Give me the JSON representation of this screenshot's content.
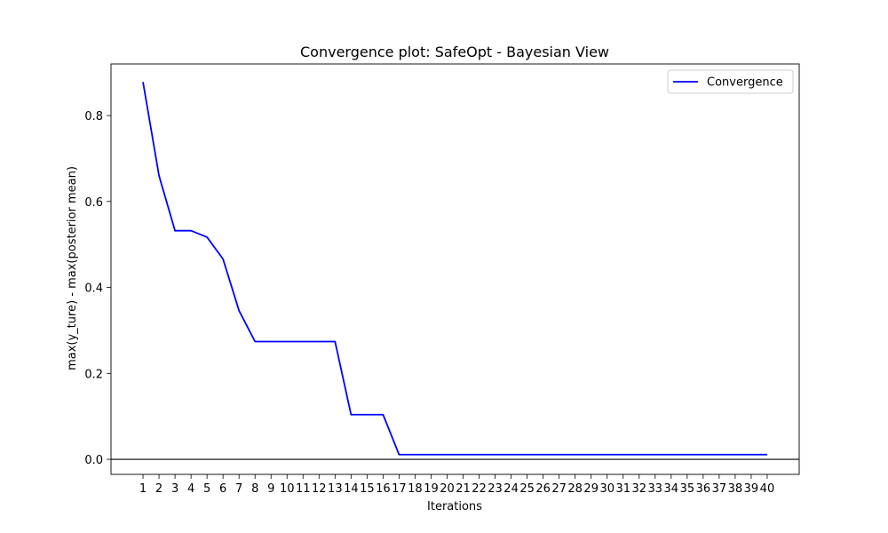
{
  "chart_data": {
    "type": "line",
    "title": "Convergence plot: SafeOpt - Bayesian View",
    "xlabel": "Iterations",
    "ylabel": "max(y_ture) - max(posterior mean)",
    "xlim": [
      -1,
      42
    ],
    "ylim": [
      -0.035,
      0.92
    ],
    "x": [
      1,
      2,
      3,
      4,
      5,
      6,
      7,
      8,
      9,
      10,
      11,
      12,
      13,
      14,
      15,
      16,
      17,
      18,
      19,
      20,
      21,
      22,
      23,
      24,
      25,
      26,
      27,
      28,
      29,
      30,
      31,
      32,
      33,
      34,
      35,
      36,
      37,
      38,
      39,
      40
    ],
    "x_tick_labels": [
      "1",
      "2",
      "3",
      "4",
      "5",
      "6",
      "7",
      "8",
      "9",
      "10",
      "11",
      "12",
      "13",
      "14",
      "15",
      "16",
      "17",
      "18",
      "19",
      "20",
      "21",
      "22",
      "23",
      "24",
      "25",
      "26",
      "27",
      "28",
      "29",
      "30",
      "31",
      "32",
      "33",
      "34",
      "35",
      "36",
      "37",
      "38",
      "39",
      "40"
    ],
    "y_ticks": [
      0.0,
      0.2,
      0.4,
      0.6,
      0.8
    ],
    "y_tick_labels": [
      "0.0",
      "0.2",
      "0.4",
      "0.6",
      "0.8"
    ],
    "series": [
      {
        "name": "Convergence",
        "color": "#0000ff",
        "values": [
          0.878,
          0.66,
          0.532,
          0.532,
          0.517,
          0.466,
          0.346,
          0.274,
          0.274,
          0.274,
          0.274,
          0.274,
          0.274,
          0.104,
          0.104,
          0.104,
          0.011,
          0.011,
          0.011,
          0.011,
          0.011,
          0.011,
          0.011,
          0.011,
          0.011,
          0.011,
          0.011,
          0.011,
          0.011,
          0.011,
          0.011,
          0.011,
          0.011,
          0.011,
          0.011,
          0.011,
          0.011,
          0.011,
          0.011,
          0.011
        ]
      }
    ],
    "reference_line": {
      "y": 0.0,
      "color": "#000000"
    },
    "legend": {
      "placement": "upper-right",
      "entries": [
        "Convergence"
      ]
    },
    "grid": false
  }
}
